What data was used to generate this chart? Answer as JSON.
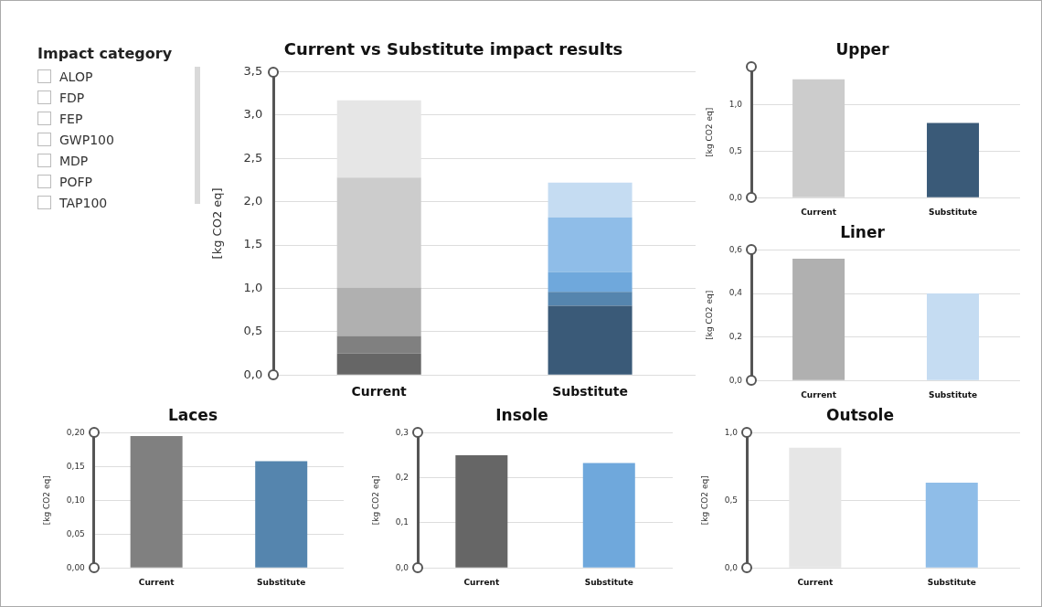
{
  "chart_data": [
    {
      "type": "other",
      "title": "Impact category",
      "annotations": [
        "ALOP",
        "FDP",
        "FEP",
        "GWP100",
        "MDP",
        "POFP",
        "TAP100"
      ]
    },
    {
      "type": "bar",
      "title": "Current vs Substitute impact results",
      "ylabel": "[kg CO2 eq]",
      "categories": [
        "Current",
        "Substitute"
      ],
      "stacked": true,
      "series": [
        {
          "values": [
            0.25,
            0.8
          ],
          "colors": [
            "#666666",
            "#3a5a78"
          ]
        },
        {
          "values": [
            0.2,
            0.16
          ],
          "colors": [
            "#808080",
            "#5585ae"
          ]
        },
        {
          "values": [
            0.56,
            0.23
          ],
          "colors": [
            "#b0b0b0",
            "#6fa8dc"
          ]
        },
        {
          "values": [
            1.27,
            0.63
          ],
          "colors": [
            "#cccccc",
            "#8fbde8"
          ]
        },
        {
          "values": [
            0.89,
            0.4
          ],
          "colors": [
            "#e6e6e6",
            "#c5dcf2"
          ]
        }
      ],
      "ylim": [
        0,
        3.5
      ],
      "yticks": [
        {
          "value": 0,
          "label": "0,0"
        },
        {
          "value": 0.5,
          "label": "0,5"
        },
        {
          "value": 1,
          "label": "1,0"
        },
        {
          "value": 1.5,
          "label": "1,5"
        },
        {
          "value": 2,
          "label": "2,0"
        },
        {
          "value": 2.5,
          "label": "2,5"
        },
        {
          "value": 3,
          "label": "3,0"
        },
        {
          "value": 3.5,
          "label": "3,5"
        }
      ],
      "grid": "y",
      "legend": false
    },
    {
      "type": "bar",
      "title": "Upper",
      "ylabel": "[kg CO2 eq]",
      "categories": [
        "Current",
        "Substitute"
      ],
      "values": [
        1.27,
        0.8
      ],
      "colors": [
        "#cccccc",
        "#3a5a78"
      ],
      "ylim": [
        0,
        1.4
      ],
      "yticks": [
        {
          "value": 0,
          "label": "0,0"
        },
        {
          "value": 0.5,
          "label": "0,5"
        },
        {
          "value": 1,
          "label": "1,0"
        }
      ],
      "grid": "y",
      "legend": false
    },
    {
      "type": "bar",
      "title": "Liner",
      "ylabel": "[kg CO2 eq]",
      "categories": [
        "Current",
        "Substitute"
      ],
      "values": [
        0.56,
        0.4
      ],
      "colors": [
        "#b0b0b0",
        "#c5dcf2"
      ],
      "ylim": [
        0,
        0.6
      ],
      "yticks": [
        {
          "value": 0,
          "label": "0,0"
        },
        {
          "value": 0.2,
          "label": "0,2"
        },
        {
          "value": 0.4,
          "label": "0,4"
        },
        {
          "value": 0.6,
          "label": "0,6"
        }
      ],
      "grid": "y",
      "legend": false
    },
    {
      "type": "bar",
      "title": "Laces",
      "ylabel": "[kg CO2 eq]",
      "categories": [
        "Current",
        "Substitute"
      ],
      "values": [
        0.195,
        0.158
      ],
      "colors": [
        "#808080",
        "#5585ae"
      ],
      "ylim": [
        0,
        0.2
      ],
      "yticks": [
        {
          "value": 0,
          "label": "0,00"
        },
        {
          "value": 0.05,
          "label": "0,05"
        },
        {
          "value": 0.1,
          "label": "0,10"
        },
        {
          "value": 0.15,
          "label": "0,15"
        },
        {
          "value": 0.2,
          "label": "0,20"
        }
      ],
      "grid": "y",
      "legend": false
    },
    {
      "type": "bar",
      "title": "Insole",
      "ylabel": "[kg CO2 eq]",
      "categories": [
        "Current",
        "Substitute"
      ],
      "values": [
        0.25,
        0.233
      ],
      "colors": [
        "#666666",
        "#6fa8dc"
      ],
      "ylim": [
        0,
        0.3
      ],
      "yticks": [
        {
          "value": 0,
          "label": "0,0"
        },
        {
          "value": 0.1,
          "label": "0,1"
        },
        {
          "value": 0.2,
          "label": "0,2"
        },
        {
          "value": 0.3,
          "label": "0,3"
        }
      ],
      "grid": "y",
      "legend": false
    },
    {
      "type": "bar",
      "title": "Outsole",
      "ylabel": "[kg CO2 eq]",
      "categories": [
        "Current",
        "Substitute"
      ],
      "values": [
        0.89,
        0.63
      ],
      "colors": [
        "#e6e6e6",
        "#8fbde8"
      ],
      "ylim": [
        0,
        1
      ],
      "yticks": [
        {
          "value": 0,
          "label": "0,0"
        },
        {
          "value": 0.5,
          "label": "0,5"
        },
        {
          "value": 1,
          "label": "1,0"
        }
      ],
      "grid": "y",
      "legend": false
    }
  ]
}
